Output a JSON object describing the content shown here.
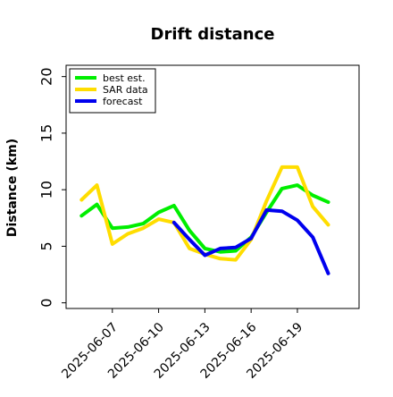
{
  "chart_data": {
    "type": "line",
    "title": "Drift distance",
    "xlabel": "",
    "ylabel": "Distance (km)",
    "x_type": "date",
    "x": [
      "2025-06-05",
      "2025-06-06",
      "2025-06-07",
      "2025-06-08",
      "2025-06-09",
      "2025-06-10",
      "2025-06-11",
      "2025-06-12",
      "2025-06-13",
      "2025-06-14",
      "2025-06-15",
      "2025-06-16",
      "2025-06-17",
      "2025-06-18",
      "2025-06-19",
      "2025-06-20",
      "2025-06-21",
      "2025-06-22"
    ],
    "xlim": [
      "2025-06-04",
      "2025-06-23"
    ],
    "ylim": [
      -0.5,
      21
    ],
    "xticks": [
      "2025-06-07",
      "2025-06-10",
      "2025-06-13",
      "2025-06-16",
      "2025-06-19"
    ],
    "yticks": [
      0,
      5,
      10,
      15,
      20
    ],
    "grid": false,
    "legend_position": "top-left",
    "series": [
      {
        "name": "best est.",
        "color": "#00ee00",
        "values": [
          7.7,
          8.7,
          6.6,
          6.7,
          7.0,
          8.0,
          8.6,
          6.4,
          4.8,
          4.5,
          4.6,
          5.8,
          8.0,
          10.1,
          10.4,
          9.5,
          8.9,
          null
        ]
      },
      {
        "name": "SAR data",
        "color": "#ffdd00",
        "values": [
          9.1,
          10.4,
          5.2,
          6.1,
          6.6,
          7.4,
          7.1,
          4.8,
          4.3,
          3.9,
          3.8,
          5.6,
          9.0,
          12.0,
          12.0,
          8.5,
          6.9,
          null
        ]
      },
      {
        "name": "forecast",
        "color": "#0000ee",
        "values": [
          null,
          null,
          null,
          null,
          null,
          null,
          7.1,
          5.6,
          4.2,
          4.8,
          4.9,
          5.7,
          8.2,
          8.1,
          7.3,
          5.8,
          2.6,
          null
        ]
      }
    ]
  }
}
